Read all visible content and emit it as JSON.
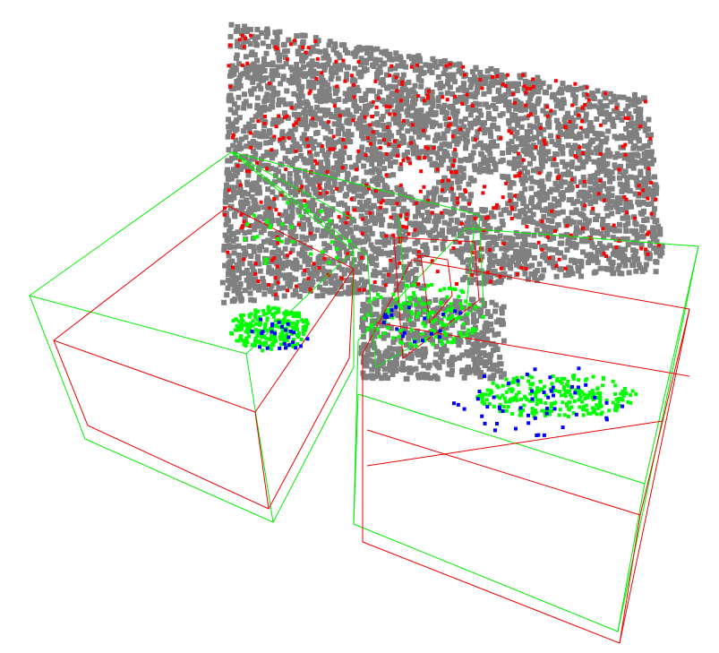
{
  "scene": {
    "background": "#ffffff",
    "colors": {
      "scene_points": "#808080",
      "highlight_points": "#ff0000",
      "detected_points": "#00ff00",
      "extra_points": "#0000ff",
      "prediction_box": "#00ee00",
      "ground_truth_box": "#ee0000"
    }
  }
}
